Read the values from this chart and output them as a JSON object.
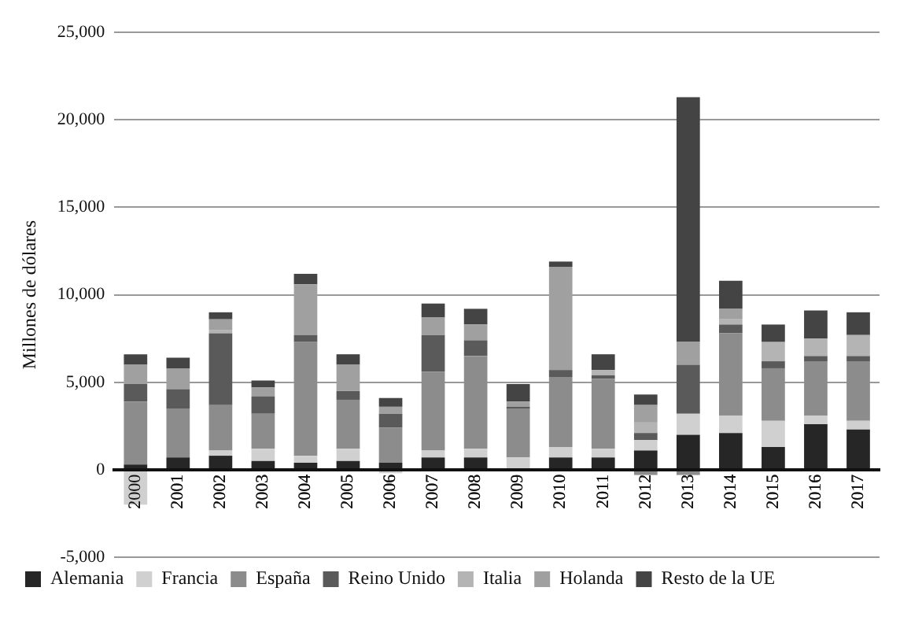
{
  "chart_data": {
    "type": "bar",
    "stacked": true,
    "ylabel": "Millones de dólares",
    "categories": [
      "2000",
      "2001",
      "2002",
      "2003",
      "2004",
      "2005",
      "2006",
      "2007",
      "2008",
      "2009",
      "2010",
      "2011",
      "2012",
      "2013",
      "2014",
      "2015",
      "2016",
      "2017"
    ],
    "series": [
      {
        "name": "Alemania",
        "color": "#262626",
        "values": [
          300,
          700,
          800,
          500,
          400,
          500,
          400,
          700,
          700,
          null,
          700,
          700,
          1100,
          2000,
          2100,
          1300,
          2600,
          2300
        ]
      },
      {
        "name": "Francia",
        "color": "#d0d0d0",
        "values": [
          -2000,
          0,
          300,
          700,
          400,
          700,
          -200,
          400,
          500,
          700,
          600,
          500,
          600,
          1200,
          1000,
          1500,
          500,
          500
        ]
      },
      {
        "name": "España",
        "color": "#8c8c8c",
        "values": [
          3600,
          2800,
          2600,
          2000,
          6500,
          2800,
          2000,
          4500,
          5300,
          2800,
          4000,
          4000,
          -300,
          -300,
          4700,
          3000,
          3100,
          3400
        ]
      },
      {
        "name": "Reino Unido",
        "color": "#5a5a5a",
        "values": [
          1000,
          1100,
          4100,
          1000,
          400,
          500,
          800,
          2100,
          900,
          100,
          400,
          200,
          400,
          2800,
          500,
          400,
          300,
          300
        ]
      },
      {
        "name": "Italia",
        "color": "#b4b4b4",
        "values": [
          0,
          null,
          200,
          null,
          0,
          0,
          0,
          0,
          null,
          0,
          0,
          300,
          600,
          0,
          300,
          1100,
          1000,
          1200
        ]
      },
      {
        "name": "Holanda",
        "color": "#a0a0a0",
        "values": [
          1100,
          1200,
          600,
          500,
          2900,
          1500,
          400,
          1000,
          900,
          300,
          5900,
          0,
          1000,
          1300,
          600,
          0,
          0,
          0
        ]
      },
      {
        "name": "Resto de la UE",
        "color": "#444444",
        "values": [
          600,
          600,
          400,
          400,
          600,
          600,
          500,
          800,
          900,
          1000,
          300,
          900,
          600,
          14000,
          1600,
          1000,
          1600,
          1300
        ]
      }
    ],
    "ylim": [
      -5000,
      25000
    ],
    "yticks": [
      {
        "value": -5000,
        "label": "-5,000"
      },
      {
        "value": 0,
        "label": "0"
      },
      {
        "value": 5000,
        "label": "5,000"
      },
      {
        "value": 10000,
        "label": "10,000"
      },
      {
        "value": 15000,
        "label": "15,000"
      },
      {
        "value": 20000,
        "label": "20,000"
      },
      {
        "value": 25000,
        "label": "25,000"
      }
    ],
    "grid": "y",
    "legend": "bottom"
  }
}
